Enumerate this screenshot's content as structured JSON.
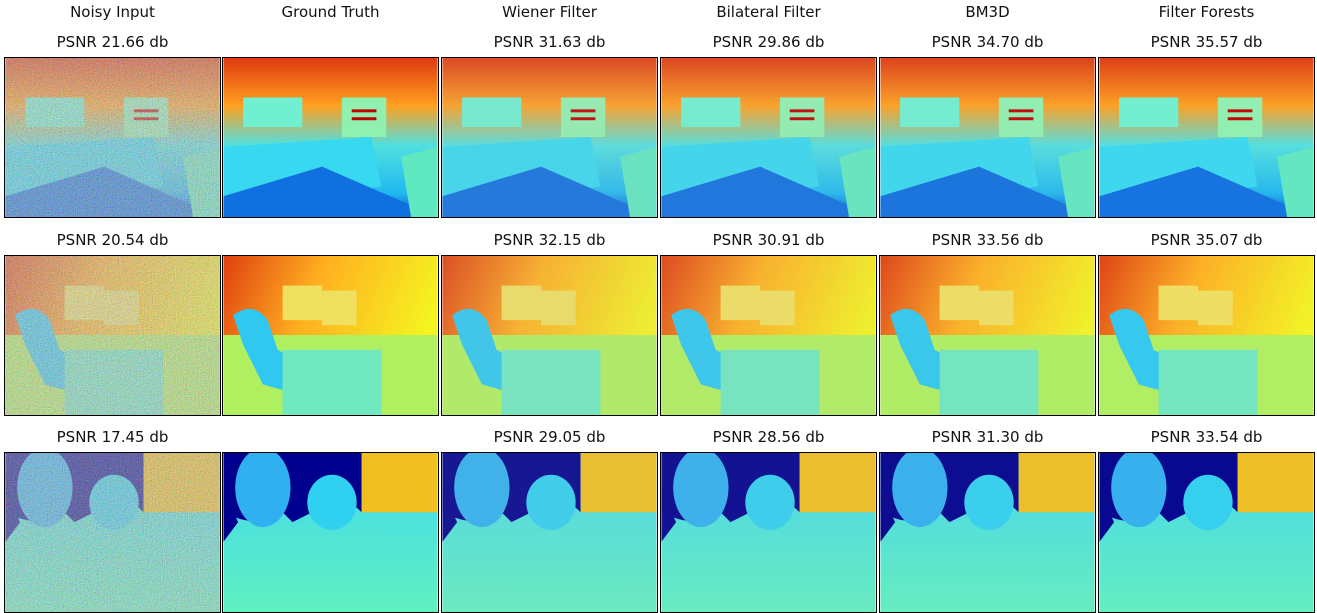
{
  "columns": [
    "Noisy Input",
    "Ground Truth",
    "Wiener Filter",
    "Bilateral Filter",
    "BM3D",
    "Filter Forests"
  ],
  "rows": [
    {
      "psnr": [
        "PSNR 21.66 db",
        "PSNR 31.63 db",
        "PSNR 29.86 db",
        "PSNR 34.70 db",
        "PSNR 35.57 db"
      ]
    },
    {
      "psnr": [
        "PSNR 20.54 db",
        "PSNR 32.15 db",
        "PSNR 30.91 db",
        "PSNR 33.56 db",
        "PSNR 35.07 db"
      ]
    },
    {
      "psnr": [
        "PSNR 17.45 db",
        "PSNR 29.05 db",
        "PSNR 28.56 db",
        "PSNR 31.30 db",
        "PSNR 33.54 db"
      ]
    }
  ]
}
